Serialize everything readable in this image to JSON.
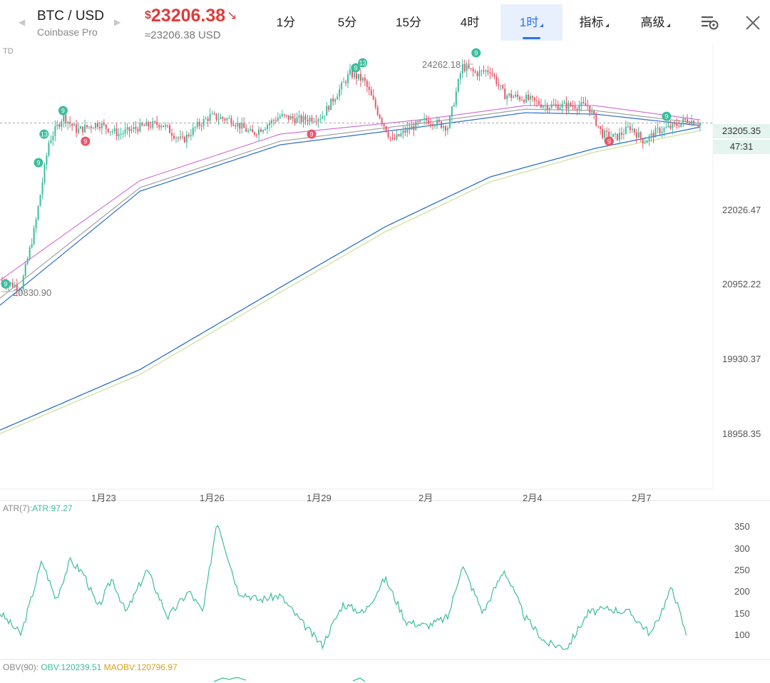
{
  "header": {
    "symbol": "BTC / USD",
    "exchange": "Coinbase Pro",
    "price_currency": "$",
    "price": "23206.38",
    "price_direction_icon": "arrow-down-right-icon",
    "price_approx": "≈23206.38 USD",
    "price_color": "#e03a3a"
  },
  "tabs": [
    {
      "label": "1分",
      "active": false,
      "dropdown": false
    },
    {
      "label": "5分",
      "active": false,
      "dropdown": false
    },
    {
      "label": "15分",
      "active": false,
      "dropdown": false
    },
    {
      "label": "4时",
      "active": false,
      "dropdown": false
    },
    {
      "label": "1时",
      "active": true,
      "dropdown": true
    },
    {
      "label": "指标",
      "active": false,
      "dropdown": true
    },
    {
      "label": "高级",
      "active": false,
      "dropdown": true
    }
  ],
  "icons": {
    "settings": "chart-settings-icon",
    "close": "close-icon",
    "prev": "chevron-left-icon",
    "next": "chevron-right-icon"
  },
  "colors": {
    "up": "#3cbd9c",
    "down": "#e8566a",
    "accent": "#2d74e8",
    "ma_pink": "#d06ad4",
    "ma_gray": "#9a9a9a",
    "ma_blue": "#2a6fc9",
    "ma_yellow": "#cfe0a0",
    "atr": "#3cbd9c"
  },
  "main_chart": {
    "indicator_label": "TD",
    "current_price_label": "23205.35",
    "countdown_label": "47:31",
    "high_label": "24262.18",
    "low_label": "20830.90",
    "y_axis_labels": [
      "22026.47",
      "20952.22",
      "19930.37",
      "18958.35"
    ],
    "x_axis_labels": [
      "1月23",
      "1月26",
      "1月29",
      "2月",
      "2月4",
      "2月7"
    ]
  },
  "atr_panel": {
    "label": "ATR(7):",
    "value": "ATR:97.27",
    "y_axis_labels": [
      "350",
      "300",
      "250",
      "200",
      "150",
      "100"
    ]
  },
  "obv_panel": {
    "label": "OBV(90):",
    "obv_value": "OBV:120239.51",
    "maobv_value": "MAOBV:120796.97"
  },
  "chart_data": {
    "type": "candlestick",
    "symbol": "BTC/USD",
    "interval": "1时",
    "x_ticks": [
      "1月23",
      "1月26",
      "1月29",
      "2月",
      "2月4",
      "2月7"
    ],
    "y_ticks": [
      22026.47,
      20952.22,
      19930.37,
      18958.35
    ],
    "close_path": [
      [
        0,
        21000
      ],
      [
        0.03,
        20900
      ],
      [
        0.05,
        21750
      ],
      [
        0.07,
        22950
      ],
      [
        0.09,
        23300
      ],
      [
        0.11,
        23100
      ],
      [
        0.14,
        23200
      ],
      [
        0.17,
        23050
      ],
      [
        0.2,
        23150
      ],
      [
        0.23,
        23200
      ],
      [
        0.26,
        22950
      ],
      [
        0.28,
        23150
      ],
      [
        0.3,
        23300
      ],
      [
        0.33,
        23250
      ],
      [
        0.36,
        23050
      ],
      [
        0.4,
        23300
      ],
      [
        0.43,
        23250
      ],
      [
        0.46,
        23300
      ],
      [
        0.48,
        23600
      ],
      [
        0.5,
        23900
      ],
      [
        0.52,
        23800
      ],
      [
        0.54,
        23350
      ],
      [
        0.56,
        22950
      ],
      [
        0.58,
        23100
      ],
      [
        0.61,
        23250
      ],
      [
        0.64,
        23150
      ],
      [
        0.66,
        24000
      ],
      [
        0.68,
        23900
      ],
      [
        0.7,
        23950
      ],
      [
        0.72,
        23600
      ],
      [
        0.75,
        23550
      ],
      [
        0.78,
        23450
      ],
      [
        0.81,
        23450
      ],
      [
        0.84,
        23450
      ],
      [
        0.86,
        23050
      ],
      [
        0.88,
        23000
      ],
      [
        0.9,
        23150
      ],
      [
        0.92,
        22950
      ],
      [
        0.94,
        23100
      ],
      [
        0.96,
        23150
      ],
      [
        0.98,
        23250
      ],
      [
        1.0,
        23206
      ]
    ],
    "ma_pink": [
      [
        0,
        21000
      ],
      [
        0.2,
        22400
      ],
      [
        0.4,
        23050
      ],
      [
        0.6,
        23250
      ],
      [
        0.75,
        23450
      ],
      [
        0.85,
        23450
      ],
      [
        1.0,
        23250
      ]
    ],
    "ma_gray": [
      [
        0,
        20750
      ],
      [
        0.2,
        22300
      ],
      [
        0.4,
        22950
      ],
      [
        0.6,
        23200
      ],
      [
        0.75,
        23400
      ],
      [
        0.85,
        23380
      ],
      [
        1.0,
        23200
      ]
    ],
    "ma_blue": [
      [
        0,
        20650
      ],
      [
        0.2,
        22250
      ],
      [
        0.4,
        22900
      ],
      [
        0.6,
        23150
      ],
      [
        0.75,
        23350
      ],
      [
        0.85,
        23330
      ],
      [
        1.0,
        23170
      ]
    ],
    "ma_long_blue": [
      [
        0,
        18900
      ],
      [
        0.2,
        19750
      ],
      [
        0.4,
        20900
      ],
      [
        0.55,
        21750
      ],
      [
        0.7,
        22450
      ],
      [
        0.85,
        22850
      ],
      [
        1.0,
        23150
      ]
    ],
    "ma_long_yellow": [
      [
        0,
        18850
      ],
      [
        0.2,
        19680
      ],
      [
        0.4,
        20830
      ],
      [
        0.55,
        21680
      ],
      [
        0.7,
        22380
      ],
      [
        0.85,
        22800
      ],
      [
        1.0,
        23100
      ]
    ],
    "atr_values": [
      [
        0,
        150
      ],
      [
        0.03,
        100
      ],
      [
        0.06,
        270
      ],
      [
        0.08,
        180
      ],
      [
        0.1,
        270
      ],
      [
        0.12,
        240
      ],
      [
        0.14,
        160
      ],
      [
        0.16,
        230
      ],
      [
        0.18,
        150
      ],
      [
        0.21,
        250
      ],
      [
        0.24,
        140
      ],
      [
        0.27,
        200
      ],
      [
        0.29,
        150
      ],
      [
        0.31,
        365
      ],
      [
        0.34,
        200
      ],
      [
        0.37,
        180
      ],
      [
        0.4,
        190
      ],
      [
        0.43,
        130
      ],
      [
        0.46,
        75
      ],
      [
        0.49,
        170
      ],
      [
        0.52,
        150
      ],
      [
        0.55,
        230
      ],
      [
        0.58,
        130
      ],
      [
        0.61,
        120
      ],
      [
        0.64,
        140
      ],
      [
        0.66,
        260
      ],
      [
        0.69,
        150
      ],
      [
        0.72,
        250
      ],
      [
        0.75,
        140
      ],
      [
        0.78,
        80
      ],
      [
        0.81,
        70
      ],
      [
        0.84,
        150
      ],
      [
        0.87,
        160
      ],
      [
        0.9,
        150
      ],
      [
        0.93,
        100
      ],
      [
        0.96,
        210
      ],
      [
        0.98,
        100
      ]
    ]
  }
}
